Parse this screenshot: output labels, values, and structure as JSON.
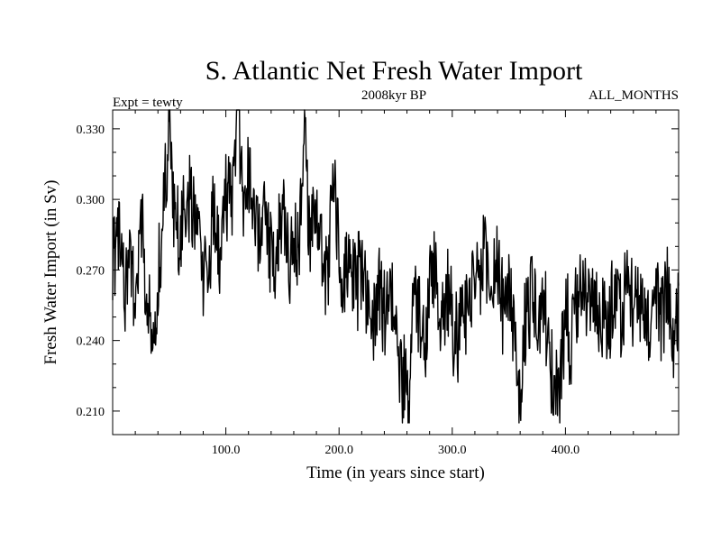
{
  "chart_data": {
    "type": "line",
    "title": "S. Atlantic Net Fresh Water Import",
    "subtitle": "2008kyr BP",
    "expt_label": "Expt = tewty",
    "period_label": "ALL_MONTHS",
    "xlabel": "Time (in years since start)",
    "ylabel": "Fresh Water Import (in Sv)",
    "xlim": [
      0,
      500
    ],
    "ylim": [
      0.2,
      0.338
    ],
    "xticks": [
      100,
      200,
      300,
      400
    ],
    "xtick_labels": [
      "100.0",
      "200.0",
      "300.0",
      "400.0"
    ],
    "yticks": [
      0.21,
      0.24,
      0.27,
      0.3,
      0.33
    ],
    "ytick_labels": [
      "0.210",
      "0.240",
      "0.270",
      "0.300",
      "0.330"
    ],
    "grid": false,
    "series": [
      {
        "name": "Fresh Water Import",
        "key_points": {
          "x": [
            0,
            5,
            10,
            15,
            20,
            25,
            30,
            33,
            35,
            38,
            40,
            45,
            48,
            50,
            55,
            60,
            65,
            70,
            75,
            80,
            85,
            90,
            95,
            100,
            105,
            110,
            115,
            120,
            125,
            130,
            135,
            140,
            145,
            150,
            155,
            160,
            165,
            170,
            173,
            175,
            180,
            185,
            190,
            195,
            200,
            205,
            210,
            215,
            220,
            225,
            230,
            235,
            240,
            245,
            250,
            255,
            260,
            262,
            265,
            270,
            275,
            280,
            285,
            290,
            295,
            300,
            305,
            310,
            315,
            320,
            325,
            330,
            335,
            340,
            345,
            350,
            355,
            360,
            365,
            370,
            375,
            380,
            385,
            390,
            395,
            400,
            405,
            410,
            415,
            420,
            425,
            430,
            435,
            440,
            445,
            450,
            455,
            460,
            465,
            470,
            475,
            480,
            485,
            490,
            495,
            500
          ],
          "y": [
            0.273,
            0.29,
            0.262,
            0.28,
            0.258,
            0.295,
            0.25,
            0.245,
            0.238,
            0.235,
            0.26,
            0.3,
            0.315,
            0.335,
            0.29,
            0.28,
            0.305,
            0.295,
            0.29,
            0.27,
            0.28,
            0.295,
            0.27,
            0.3,
            0.305,
            0.338,
            0.3,
            0.31,
            0.29,
            0.285,
            0.295,
            0.28,
            0.27,
            0.3,
            0.275,
            0.28,
            0.285,
            0.332,
            0.29,
            0.28,
            0.295,
            0.28,
            0.27,
            0.31,
            0.275,
            0.265,
            0.28,
            0.26,
            0.27,
            0.26,
            0.25,
            0.265,
            0.255,
            0.26,
            0.245,
            0.23,
            0.215,
            0.205,
            0.26,
            0.25,
            0.24,
            0.26,
            0.27,
            0.245,
            0.26,
            0.25,
            0.24,
            0.255,
            0.25,
            0.27,
            0.27,
            0.275,
            0.26,
            0.27,
            0.255,
            0.26,
            0.245,
            0.21,
            0.25,
            0.26,
            0.245,
            0.255,
            0.24,
            0.21,
            0.22,
            0.25,
            0.24,
            0.255,
            0.265,
            0.255,
            0.26,
            0.25,
            0.245,
            0.255,
            0.26,
            0.25,
            0.265,
            0.255,
            0.26,
            0.25,
            0.245,
            0.255,
            0.25,
            0.26,
            0.245,
            0.255
          ]
        }
      }
    ]
  }
}
